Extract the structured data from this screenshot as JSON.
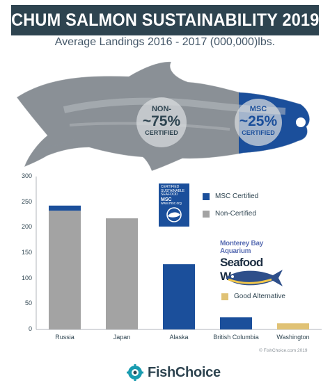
{
  "header": {
    "title": "CHUM SALMON SUSTAINABILITY 2019",
    "subtitle": "Average Landings 2016 - 2017 (000,000)lbs."
  },
  "fish": {
    "non_certified": {
      "top": "NON-",
      "pct": "~75%",
      "bottom": "CERTIFIED",
      "value_percent": 75
    },
    "msc_certified": {
      "top": "MSC",
      "pct": "~25%",
      "bottom": "CERTIFIED",
      "value_percent": 25
    },
    "watermark": "© FishChoice.com 2019"
  },
  "legend": {
    "msc": "MSC Certified",
    "non": "Non-Certified",
    "good": "Good Alternative"
  },
  "msc_logo": {
    "line1": "CERTIFIED",
    "line2": "SUSTAINABLE",
    "line3": "SEAFOOD",
    "big": "MSC",
    "url": "www.msc.org"
  },
  "seafood_watch": {
    "top": "Monterey Bay Aquarium",
    "main": "Seafood Watch"
  },
  "footer": {
    "copyright": "© FishChoice.com 2019",
    "brand": "FishChoice"
  },
  "colors": {
    "title_bg": "#2e4450",
    "msc": "#1b4f9b",
    "non_certified": "#a3a3a3",
    "good_alternative": "#e0c275"
  },
  "chart_data": {
    "type": "bar",
    "stacked": true,
    "title": "CHUM SALMON SUSTAINABILITY 2019",
    "subtitle": "Average Landings 2016 - 2017 (000,000)lbs.",
    "categories": [
      "Russia",
      "Japan",
      "Alaska",
      "British Columbia",
      "Washington"
    ],
    "series": [
      {
        "name": "Non-Certified",
        "values": [
          233,
          218,
          0,
          0,
          0
        ],
        "color": "#a3a3a3"
      },
      {
        "name": "MSC Certified",
        "values": [
          10,
          0,
          128,
          24,
          0
        ],
        "color": "#1b4f9b"
      },
      {
        "name": "Good Alternative",
        "values": [
          0,
          0,
          0,
          0,
          12
        ],
        "color": "#e0c275"
      }
    ],
    "ylim": [
      0,
      300
    ],
    "yticks": [
      0,
      50,
      100,
      150,
      200,
      250,
      300
    ],
    "grid": false,
    "legend": "right"
  }
}
